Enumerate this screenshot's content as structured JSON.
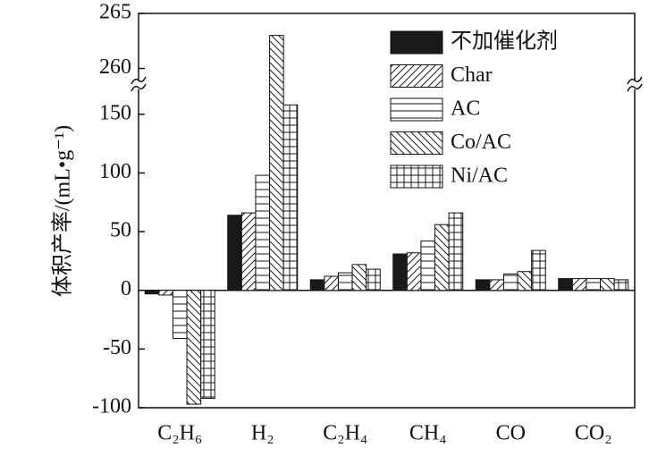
{
  "chart_data": {
    "type": "bar",
    "y_label": "体积产率/(mL•g⁻¹)",
    "categories": [
      "C₂H₆",
      "H₂",
      "C₂H₄",
      "CH₄",
      "CO",
      "CO₂"
    ],
    "series": [
      {
        "name": "不加催化剂",
        "color": "#1a1a1a",
        "hatch": "solid",
        "values": [
          -3,
          64,
          9,
          31,
          9,
          10
        ]
      },
      {
        "name": "Char",
        "color": "#1a1a1a",
        "hatch": "diagonal",
        "values": [
          -4,
          66,
          12,
          32,
          9,
          10
        ]
      },
      {
        "name": "AC",
        "color": "#1a1a1a",
        "hatch": "horizontal",
        "values": [
          -41,
          98,
          15,
          42,
          14,
          10
        ]
      },
      {
        "name": "Co/AC",
        "color": "#1a1a1a",
        "hatch": "backslash",
        "values": [
          -97,
          263,
          22,
          56,
          16,
          10
        ]
      },
      {
        "name": "Ni/AC",
        "color": "#1a1a1a",
        "hatch": "grid",
        "values": [
          -92,
          158,
          18,
          66,
          34,
          9
        ]
      }
    ],
    "ylim": [
      -100,
      265
    ],
    "ybreak": [
      175,
      258.5
    ],
    "yticks": [
      -100,
      -50,
      0,
      50,
      100,
      150,
      260,
      265
    ],
    "legend": "upper right"
  }
}
